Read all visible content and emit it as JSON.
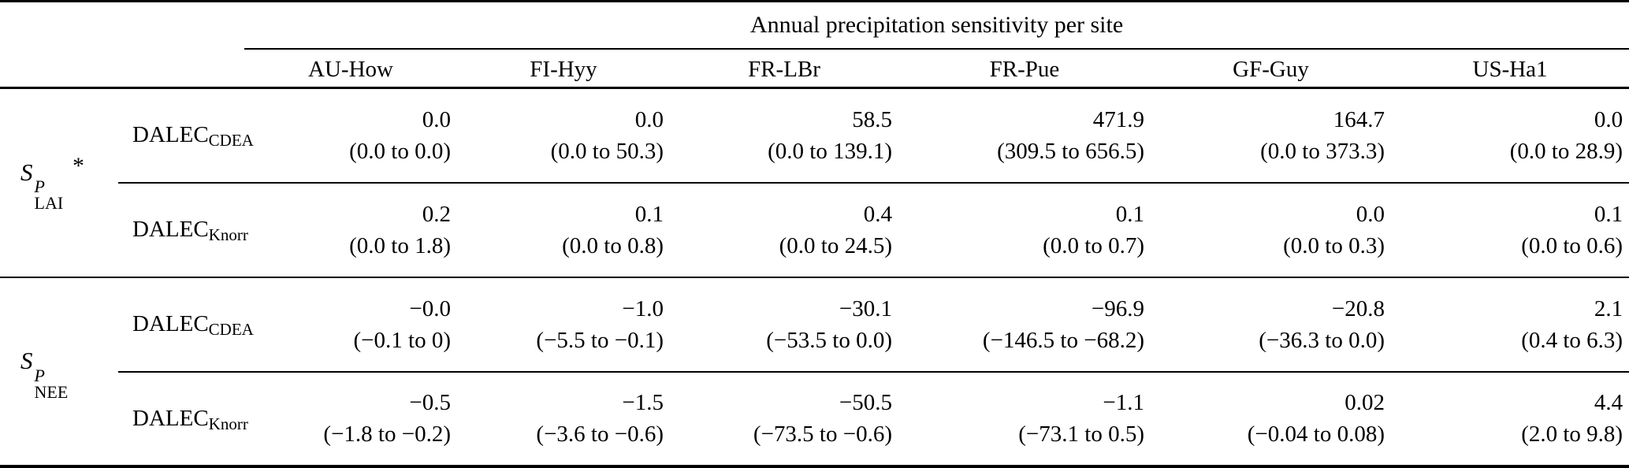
{
  "title": "Annual precipitation sensitivity per site",
  "sites": [
    "AU-How",
    "FI-Hyy",
    "FR-LBr",
    "FR-Pue",
    "GF-Guy",
    "US-Ha1"
  ],
  "groups": [
    {
      "label": {
        "base": "S",
        "sup": "P",
        "sub": "LAI",
        "suffix": "*"
      },
      "rows": [
        {
          "model": {
            "base": "DALEC",
            "sub": "CDEA"
          },
          "cells": [
            {
              "value": "0.0",
              "range": "(0.0 to 0.0)"
            },
            {
              "value": "0.0",
              "range": "(0.0 to 50.3)"
            },
            {
              "value": "58.5",
              "range": "(0.0 to 139.1)"
            },
            {
              "value": "471.9",
              "range": "(309.5 to 656.5)"
            },
            {
              "value": "164.7",
              "range": "(0.0 to 373.3)"
            },
            {
              "value": "0.0",
              "range": "(0.0 to 28.9)"
            }
          ]
        },
        {
          "model": {
            "base": "DALEC",
            "sub": "Knorr"
          },
          "cells": [
            {
              "value": "0.2",
              "range": "(0.0 to 1.8)"
            },
            {
              "value": "0.1",
              "range": "(0.0 to 0.8)"
            },
            {
              "value": "0.4",
              "range": "(0.0 to 24.5)"
            },
            {
              "value": "0.1",
              "range": "(0.0 to 0.7)"
            },
            {
              "value": "0.0",
              "range": "(0.0 to 0.3)"
            },
            {
              "value": "0.1",
              "range": "(0.0 to 0.6)"
            }
          ]
        }
      ]
    },
    {
      "label": {
        "base": "S",
        "sup": "P",
        "sub": "NEE",
        "suffix": ""
      },
      "rows": [
        {
          "model": {
            "base": "DALEC",
            "sub": "CDEA"
          },
          "cells": [
            {
              "value": "−0.0",
              "range": "(−0.1 to 0)"
            },
            {
              "value": "−1.0",
              "range": "(−5.5 to −0.1)"
            },
            {
              "value": "−30.1",
              "range": "(−53.5 to 0.0)"
            },
            {
              "value": "−96.9",
              "range": "(−146.5 to −68.2)"
            },
            {
              "value": "−20.8",
              "range": "(−36.3 to 0.0)"
            },
            {
              "value": "2.1",
              "range": "(0.4 to 6.3)"
            }
          ]
        },
        {
          "model": {
            "base": "DALEC",
            "sub": "Knorr"
          },
          "cells": [
            {
              "value": "−0.5",
              "range": "(−1.8 to −0.2)"
            },
            {
              "value": "−1.5",
              "range": "(−3.6 to −0.6)"
            },
            {
              "value": "−50.5",
              "range": "(−73.5 to −0.6)"
            },
            {
              "value": "−1.1",
              "range": "(−73.1 to 0.5)"
            },
            {
              "value": "0.02",
              "range": "(−0.04 to 0.08)"
            },
            {
              "value": "4.4",
              "range": "(2.0 to 9.8)"
            }
          ]
        }
      ]
    }
  ]
}
